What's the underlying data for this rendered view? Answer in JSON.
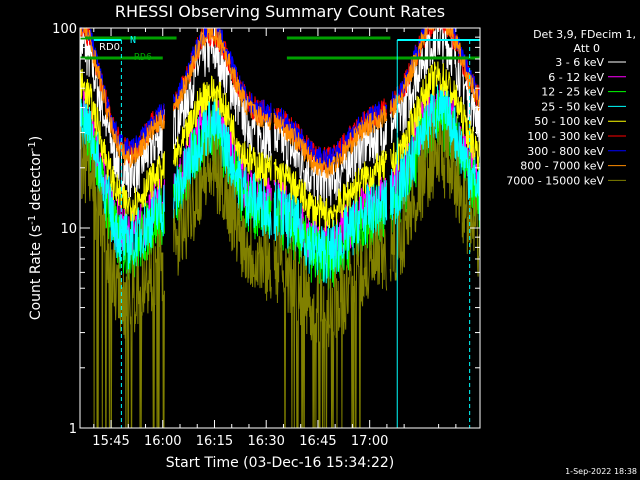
{
  "chart_data": {
    "type": "line",
    "title": "RHESSI Observing Summary Count Rates",
    "xlabel": "Start Time (03-Dec-16 15:34:22)",
    "ylabel_main": "Count Rate (s",
    "ylabel_sup1": "-1",
    "ylabel_mid": " detector",
    "ylabel_sup2": "-1",
    "ylabel_end": ")",
    "yscale": "log",
    "ylim": [
      1,
      100
    ],
    "x_ticks": [
      {
        "t": 45,
        "label": "15:45"
      },
      {
        "t": 60,
        "label": "16:00"
      },
      {
        "t": 75,
        "label": "16:15"
      },
      {
        "t": 90,
        "label": "16:30"
      },
      {
        "t": 105,
        "label": "16:45"
      },
      {
        "t": 120,
        "label": "17:00"
      }
    ],
    "x_range_min": [
      36,
      152
    ],
    "y_ticks": [
      {
        "v": 1,
        "label": "1"
      },
      {
        "v": 10,
        "label": "10"
      },
      {
        "v": 100,
        "label": "100"
      }
    ],
    "legend_header": [
      "Det 3,9, FDecim 1,",
      "Att 0"
    ],
    "series": [
      {
        "name": "3 - 6 keV",
        "color": "#ffffff",
        "base": 30,
        "amp": 1.6,
        "noise": 0.06
      },
      {
        "name": "6 - 12 keV",
        "color": "#ff00ff",
        "base": 14,
        "amp": 1.55,
        "noise": 0.06
      },
      {
        "name": "12 - 25 keV",
        "color": "#00ff00",
        "base": 12,
        "amp": 1.55,
        "noise": 0.07
      },
      {
        "name": "25 - 50 keV",
        "color": "#00ffff",
        "base": 13,
        "amp": 1.55,
        "noise": 0.07
      },
      {
        "name": "50 - 100 keV",
        "color": "#ffff00",
        "base": 20,
        "amp": 1.5,
        "noise": 0.04
      },
      {
        "name": "100 - 300 keV",
        "color": "#ff0000",
        "base": 38,
        "amp": 1.55,
        "noise": 0.03
      },
      {
        "name": "300 - 800 keV",
        "color": "#0000ff",
        "base": 39,
        "amp": 1.6,
        "noise": 0.025
      },
      {
        "name": "800 - 7000 keV",
        "color": "#ff8c00",
        "base": 36,
        "amp": 1.65,
        "noise": 0.025
      },
      {
        "name": "7000 - 15000 keV",
        "color": "#808000",
        "base": 7,
        "amp": 1.7,
        "noise": 0.05
      }
    ],
    "attenuator_bars": [
      {
        "label": "RD0",
        "t0": 36,
        "t1": 60,
        "color": "#00a000"
      },
      {
        "label": "RD6",
        "t0": 36,
        "t1": 60,
        "color": "#00a000"
      }
    ],
    "flag_label": "N"
  },
  "footer": {
    "timestamp": "1-Sep-2022 18:38"
  }
}
